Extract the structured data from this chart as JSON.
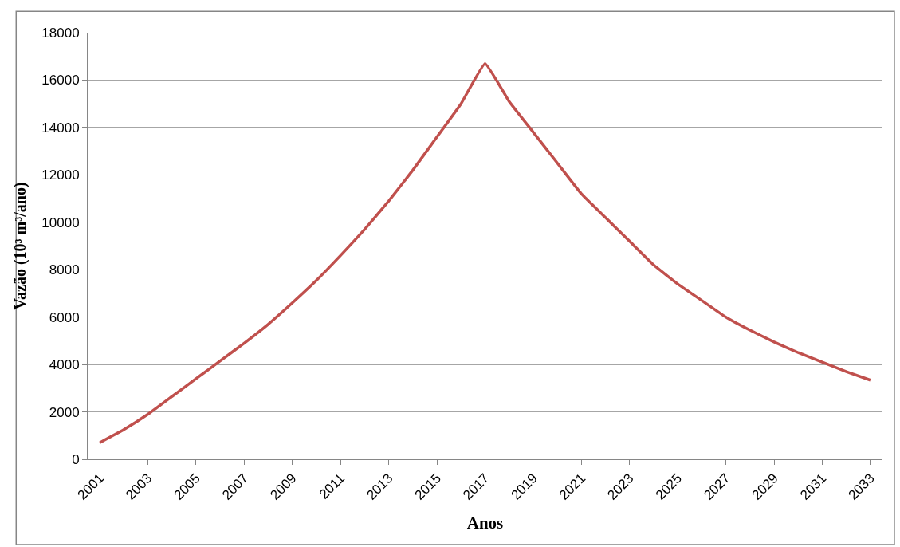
{
  "chart_data": {
    "type": "line",
    "xlabel": "Anos",
    "ylabel": "Vazão (10³ m³/ano)",
    "categories": [
      "2001",
      null,
      "2003",
      null,
      "2005",
      null,
      "2007",
      null,
      "2009",
      null,
      "2011",
      null,
      "2013",
      null,
      "2015",
      null,
      "2017",
      null,
      "2019",
      null,
      "2021",
      null,
      "2023",
      null,
      "2025",
      null,
      "2027",
      null,
      "2029",
      null,
      "2031",
      null,
      "2033"
    ],
    "series": [
      {
        "color": "#c0504d",
        "values": [
          700,
          1250,
          1900,
          2650,
          3400,
          4150,
          4900,
          5700,
          6600,
          7550,
          8600,
          9700,
          10900,
          12200,
          13600,
          15000,
          16700,
          15100,
          13800,
          12500,
          11200,
          10200,
          9200,
          8200,
          7400,
          6700,
          6000,
          5450,
          4950,
          4500,
          4100,
          3700,
          3340
        ]
      }
    ],
    "ylim": [
      0,
      18000
    ],
    "yticks": [
      0,
      2000,
      4000,
      6000,
      8000,
      10000,
      12000,
      14000,
      16000,
      18000
    ],
    "grid": "y",
    "legend": false,
    "marker": "none",
    "line_style": "solid"
  }
}
